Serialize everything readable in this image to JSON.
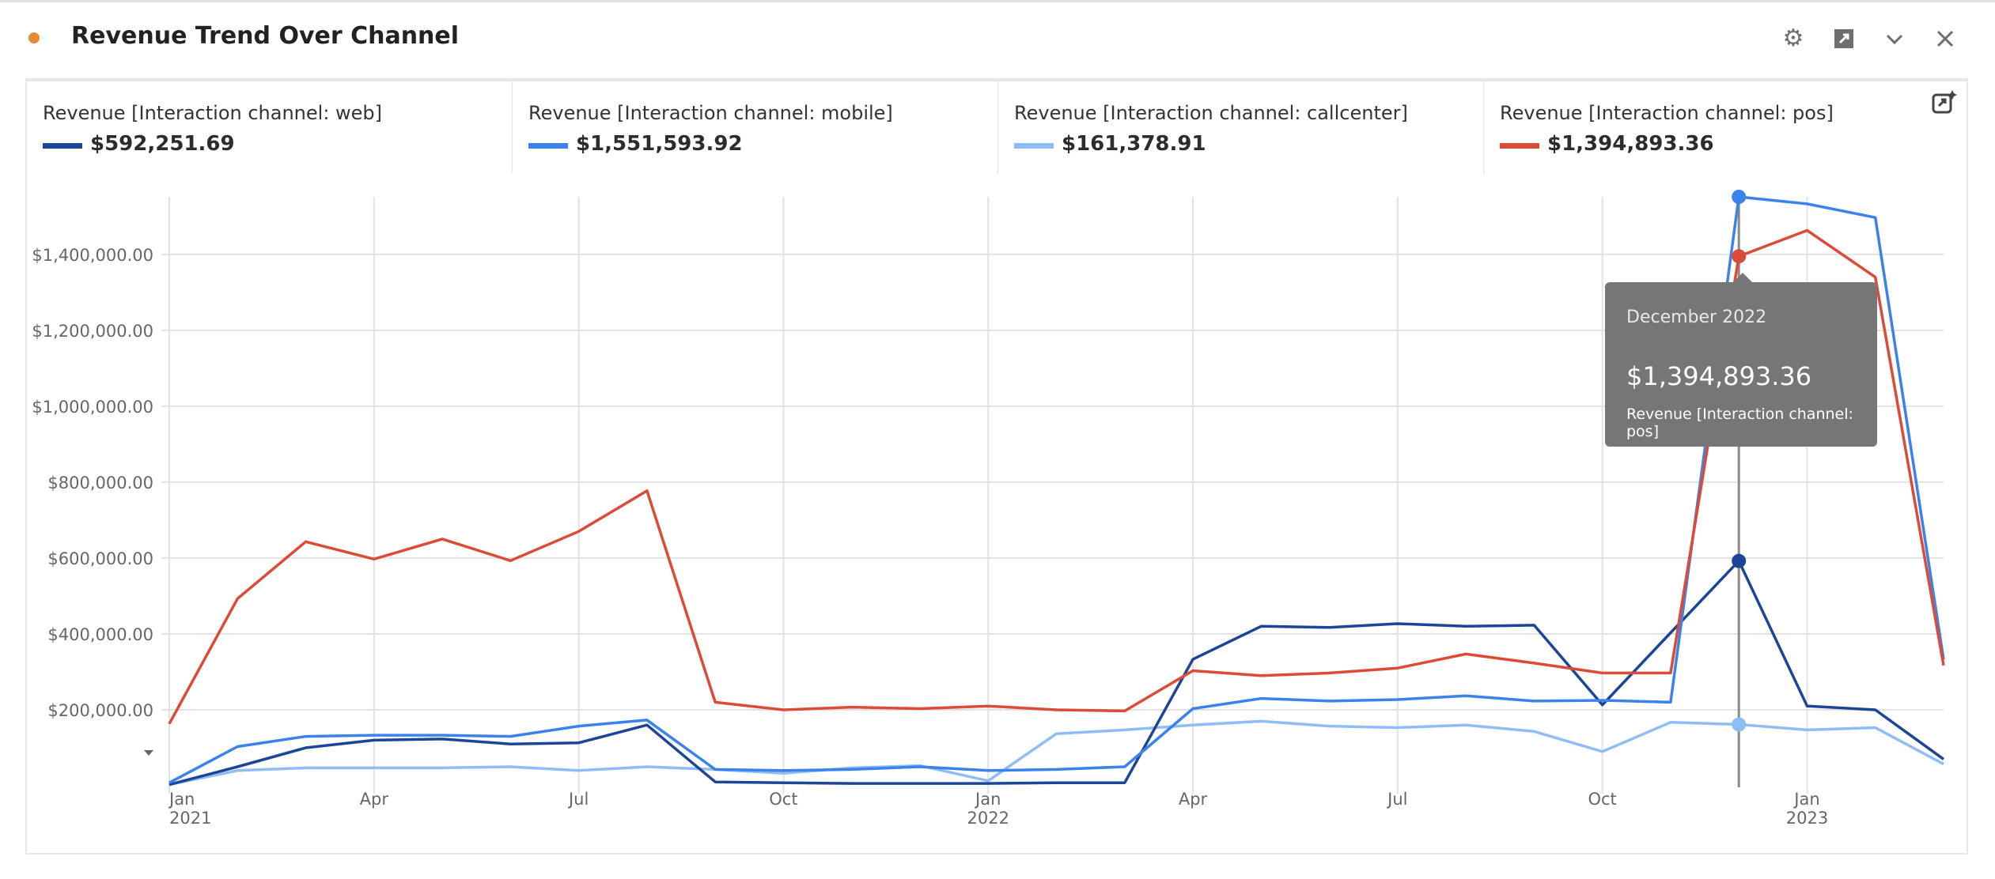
{
  "header": {
    "title": "Revenue Trend Over Channel",
    "status_color": "#e68a35"
  },
  "legend": [
    {
      "label": "Revenue [Interaction channel: web]",
      "value": "$592,251.69",
      "color": "#1c4597"
    },
    {
      "label": "Revenue [Interaction channel: mobile]",
      "value": "$1,551,593.92",
      "color": "#3b82ea"
    },
    {
      "label": "Revenue [Interaction channel: callcenter]",
      "value": "$161,378.91",
      "color": "#8fbdf5"
    },
    {
      "label": "Revenue [Interaction channel: pos]",
      "value": "$1,394,893.36",
      "color": "#dc4a38"
    }
  ],
  "tooltip": {
    "date": "December 2022",
    "value": "$1,394,893.36",
    "series": "Revenue [Interaction channel: pos]"
  },
  "chart_data": {
    "type": "line",
    "title": "Revenue Trend Over Channel",
    "x": [
      "2021-01",
      "2021-02",
      "2021-03",
      "2021-04",
      "2021-05",
      "2021-06",
      "2021-07",
      "2021-08",
      "2021-09",
      "2021-10",
      "2021-11",
      "2021-12",
      "2022-01",
      "2022-02",
      "2022-03",
      "2022-04",
      "2022-05",
      "2022-06",
      "2022-07",
      "2022-08",
      "2022-09",
      "2022-10",
      "2022-11",
      "2022-12",
      "2023-01",
      "2023-02",
      "2023-03"
    ],
    "x_ticks": [
      {
        "i": 0,
        "label": "Jan",
        "year": "2021"
      },
      {
        "i": 3,
        "label": "Apr"
      },
      {
        "i": 6,
        "label": "Jul"
      },
      {
        "i": 9,
        "label": "Oct"
      },
      {
        "i": 12,
        "label": "Jan",
        "year": "2022"
      },
      {
        "i": 15,
        "label": "Apr"
      },
      {
        "i": 18,
        "label": "Jul"
      },
      {
        "i": 21,
        "label": "Oct"
      },
      {
        "i": 24,
        "label": "Jan",
        "year": "2023"
      }
    ],
    "y_ticks": [
      {
        "v": 200000,
        "label": "$200,000.00"
      },
      {
        "v": 400000,
        "label": "$400,000.00"
      },
      {
        "v": 600000,
        "label": "$600,000.00"
      },
      {
        "v": 800000,
        "label": "$800,000.00"
      },
      {
        "v": 1000000,
        "label": "$1,000,000.00"
      },
      {
        "v": 1200000,
        "label": "$1,200,000.00"
      },
      {
        "v": 1400000,
        "label": "$1,400,000.00"
      }
    ],
    "ylim": [
      0,
      1551594
    ],
    "highlight_index": 23,
    "series": [
      {
        "name": "Revenue [Interaction channel: web]",
        "color": "#1c4597",
        "values": [
          3000,
          50000,
          100000,
          120000,
          123000,
          110000,
          113000,
          160000,
          10000,
          8000,
          6000,
          6000,
          6000,
          8000,
          8000,
          333000,
          420000,
          417000,
          427000,
          420000,
          423000,
          213000,
          403000,
          592252,
          210000,
          200000,
          70000
        ]
      },
      {
        "name": "Revenue [Interaction channel: mobile]",
        "color": "#3b82ea",
        "values": [
          8000,
          103000,
          130000,
          133000,
          133000,
          130000,
          157000,
          173000,
          43000,
          40000,
          43000,
          50000,
          40000,
          43000,
          50000,
          203000,
          230000,
          223000,
          227000,
          237000,
          223000,
          225000,
          220000,
          1551594,
          1533000,
          1497000,
          333000
        ]
      },
      {
        "name": "Revenue [Interaction channel: callcenter]",
        "color": "#8fbdf5",
        "values": [
          3000,
          40000,
          47000,
          47000,
          47000,
          50000,
          40000,
          50000,
          43000,
          33000,
          47000,
          53000,
          13000,
          137000,
          147000,
          160000,
          170000,
          157000,
          153000,
          160000,
          143000,
          90000,
          167000,
          161379,
          147000,
          153000,
          57000
        ]
      },
      {
        "name": "Revenue [Interaction channel: pos]",
        "color": "#dc4a38",
        "values": [
          163000,
          493000,
          643000,
          597000,
          650000,
          593000,
          670000,
          777000,
          220000,
          200000,
          207000,
          203000,
          210000,
          200000,
          197000,
          303000,
          290000,
          297000,
          310000,
          347000,
          323000,
          297000,
          297000,
          1394893,
          1463000,
          1340000,
          317000
        ]
      }
    ]
  }
}
